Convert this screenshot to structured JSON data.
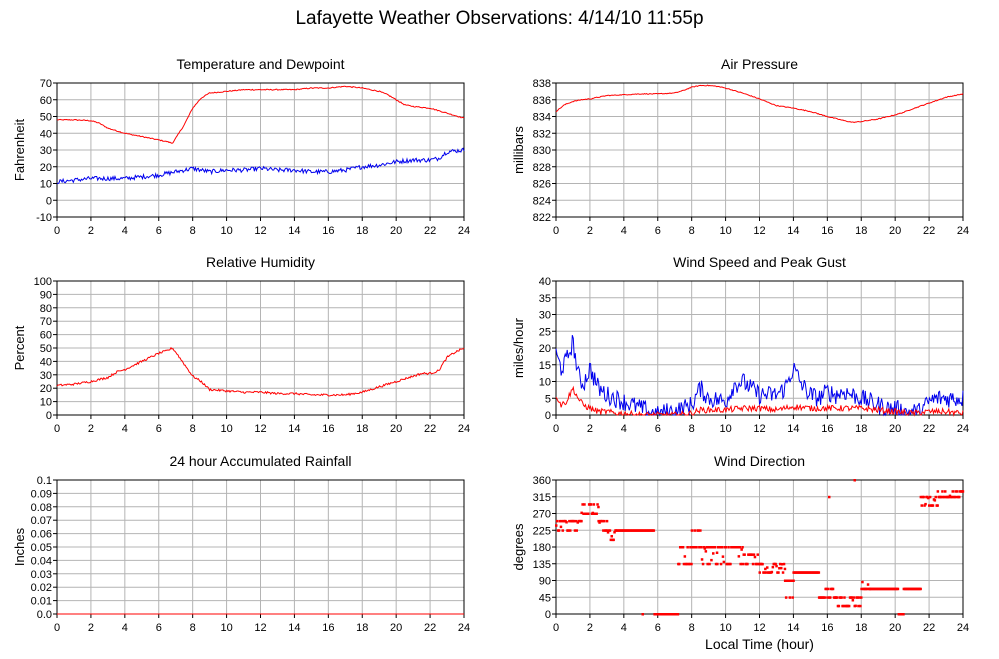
{
  "page": {
    "title": "Lafayette Weather Observations: 4/14/10 11:55p",
    "shared_xlabel": "Local Time (hour)"
  },
  "colors": {
    "red": "#ff0000",
    "blue": "#0000ee",
    "grid": "#b4b4b4",
    "axis": "#000000"
  },
  "chart_data": [
    {
      "id": "temp",
      "type": "line",
      "title": "Temperature and Dewpoint",
      "ylabel": "Fahrenheit",
      "xlabel": "",
      "xlim": [
        0,
        24
      ],
      "ylim": [
        -10,
        70
      ],
      "xticks": [
        0,
        2,
        4,
        6,
        8,
        10,
        12,
        14,
        16,
        18,
        20,
        22,
        24
      ],
      "yticks": [
        -10,
        0,
        10,
        20,
        30,
        40,
        50,
        60,
        70
      ],
      "grid": true,
      "series": [
        {
          "color": "red",
          "noise": 0.3,
          "x": [
            0,
            1,
            2,
            2.5,
            3,
            4,
            5,
            6,
            6.5,
            6.8,
            7,
            7.5,
            8,
            8.5,
            9,
            10,
            11,
            12,
            13,
            14,
            15,
            16,
            17,
            18,
            19,
            19.5,
            20,
            20.5,
            21,
            22,
            23,
            24
          ],
          "y": [
            48,
            48,
            47.5,
            46,
            43,
            40,
            38,
            36,
            35,
            34,
            37,
            45,
            55,
            61,
            64,
            65,
            66,
            66,
            66,
            66,
            67,
            67,
            68,
            67,
            65,
            63,
            60,
            57,
            56,
            55,
            52,
            49
          ]
        },
        {
          "color": "blue",
          "noise": 1.3,
          "x": [
            0,
            1,
            2,
            3,
            4,
            5,
            6,
            7,
            7.5,
            8,
            8.5,
            9,
            10,
            11,
            12,
            13,
            14,
            15,
            16,
            17,
            18,
            19,
            20,
            21,
            22,
            22.5,
            23,
            24
          ],
          "y": [
            11,
            12,
            13,
            13,
            13,
            14,
            15,
            17,
            18,
            19,
            18,
            17,
            18,
            18,
            19,
            18,
            18,
            17,
            17,
            18,
            20,
            21,
            23,
            24,
            24,
            25,
            29,
            30
          ]
        }
      ]
    },
    {
      "id": "pressure",
      "type": "line",
      "title": "Air Pressure",
      "ylabel": "millibars",
      "xlabel": "",
      "xlim": [
        0,
        24
      ],
      "ylim": [
        822,
        838
      ],
      "xticks": [
        0,
        2,
        4,
        6,
        8,
        10,
        12,
        14,
        16,
        18,
        20,
        22,
        24
      ],
      "yticks": [
        822,
        824,
        826,
        828,
        830,
        832,
        834,
        836,
        838
      ],
      "grid": true,
      "series": [
        {
          "color": "red",
          "noise": 0.05,
          "x": [
            0,
            0.5,
            1,
            1.5,
            2,
            2.5,
            3,
            4,
            5,
            6,
            7,
            7.5,
            8,
            8.5,
            9,
            9.5,
            10,
            11,
            12,
            13,
            14,
            14.5,
            15,
            16,
            17,
            17.5,
            18,
            19,
            20,
            20.5,
            21,
            22,
            23,
            24
          ],
          "y": [
            834.6,
            835.4,
            835.8,
            836,
            836.1,
            836.3,
            836.5,
            836.6,
            836.7,
            836.7,
            836.8,
            837.1,
            837.5,
            837.7,
            837.7,
            837.6,
            837.4,
            836.8,
            836.1,
            835.3,
            835,
            834.8,
            834.6,
            834,
            833.5,
            833.3,
            833.4,
            833.7,
            834.2,
            834.5,
            834.9,
            835.6,
            836.3,
            836.7
          ]
        }
      ]
    },
    {
      "id": "humidity",
      "type": "line",
      "title": "Relative Humidity",
      "ylabel": "Percent",
      "xlabel": "",
      "xlim": [
        0,
        24
      ],
      "ylim": [
        0,
        100
      ],
      "xticks": [
        0,
        2,
        4,
        6,
        8,
        10,
        12,
        14,
        16,
        18,
        20,
        22,
        24
      ],
      "yticks": [
        0,
        10,
        20,
        30,
        40,
        50,
        60,
        70,
        80,
        90,
        100
      ],
      "grid": true,
      "series": [
        {
          "color": "red",
          "noise": 0.8,
          "x": [
            0,
            1,
            2,
            3,
            3.5,
            4,
            5,
            6,
            6.5,
            6.8,
            7,
            7.5,
            8,
            8.5,
            9,
            10,
            11,
            12,
            13,
            14,
            15,
            16,
            17,
            18,
            19,
            20,
            21,
            21.5,
            22,
            22.5,
            23,
            23.5,
            24
          ],
          "y": [
            22,
            23,
            25,
            28,
            32,
            34,
            40,
            46,
            48,
            50,
            47,
            38,
            29,
            25,
            19,
            18,
            17,
            17,
            16,
            16,
            15,
            15,
            15,
            17,
            21,
            25,
            29,
            31,
            31,
            33,
            43,
            47,
            50
          ]
        }
      ]
    },
    {
      "id": "wind",
      "type": "line",
      "title": "Wind Speed and Peak Gust",
      "ylabel": "miles/hour",
      "xlabel": "",
      "xlim": [
        0,
        24
      ],
      "ylim": [
        0,
        40
      ],
      "xticks": [
        0,
        2,
        4,
        6,
        8,
        10,
        12,
        14,
        16,
        18,
        20,
        22,
        24
      ],
      "yticks": [
        0,
        5,
        10,
        15,
        20,
        25,
        30,
        35,
        40
      ],
      "grid": true,
      "series": [
        {
          "color": "blue",
          "noise": 2.8,
          "x": [
            0,
            0.3,
            0.6,
            1,
            1.3,
            1.6,
            2,
            2.5,
            3,
            3.5,
            4,
            4.5,
            5,
            5.5,
            6,
            6.5,
            7,
            7.5,
            8,
            8.5,
            9,
            10,
            10.5,
            11,
            11.5,
            12,
            13,
            13.5,
            14,
            14.5,
            15,
            15.5,
            16,
            16.5,
            17,
            17.5,
            18,
            18.5,
            19,
            19.5,
            20,
            20.5,
            21,
            21.5,
            22,
            22.5,
            23,
            23.5,
            24
          ],
          "y": [
            18,
            14,
            16,
            22,
            12,
            9,
            14,
            8,
            6,
            5,
            4,
            3,
            2,
            1,
            0,
            1,
            1,
            2,
            3,
            8,
            5,
            4,
            9,
            10,
            8,
            6,
            6,
            8,
            14,
            9,
            6,
            5,
            7,
            6,
            7,
            6,
            5,
            4,
            3,
            2,
            2,
            1,
            1,
            1,
            4,
            5,
            5,
            5,
            5
          ]
        },
        {
          "color": "red",
          "noise": 0.9,
          "x": [
            0,
            0.3,
            0.6,
            1,
            1.3,
            1.6,
            2,
            2.5,
            3,
            3.5,
            4,
            5,
            6,
            7,
            8,
            8.5,
            9,
            10,
            11,
            12,
            13,
            14,
            15,
            16,
            17,
            18,
            19,
            20,
            21,
            22,
            23,
            24
          ],
          "y": [
            6,
            3,
            4,
            8,
            5,
            3,
            2,
            1,
            1,
            0.5,
            0.5,
            0,
            0,
            0,
            0.5,
            1.5,
            1.5,
            1.5,
            2,
            2,
            1.5,
            2.5,
            2,
            2,
            2,
            2,
            1.5,
            1,
            0.5,
            1,
            1,
            0.5
          ]
        }
      ]
    },
    {
      "id": "rain",
      "type": "line",
      "title": "24 hour Accumulated Rainfall",
      "ylabel": "Inches",
      "xlabel": "",
      "xlim": [
        0,
        24
      ],
      "ylim": [
        0,
        0.1
      ],
      "xticks": [
        0,
        2,
        4,
        6,
        8,
        10,
        12,
        14,
        16,
        18,
        20,
        22,
        24
      ],
      "yticks": [
        "0.0",
        "0.01",
        "0.02",
        "0.03",
        "0.04",
        "0.05",
        "0.06",
        "0.07",
        "0.08",
        "0.09",
        "0.1"
      ],
      "grid": true,
      "series": [
        {
          "color": "red",
          "noise": 0,
          "x": [
            0,
            24
          ],
          "y": [
            0,
            0
          ]
        }
      ]
    },
    {
      "id": "winddir",
      "type": "scatter",
      "title": "Wind Direction",
      "ylabel": "degrees",
      "xlabel": "Local Time (hour)",
      "xlim": [
        0,
        24
      ],
      "ylim": [
        0,
        360
      ],
      "xticks": [
        0,
        2,
        4,
        6,
        8,
        10,
        12,
        14,
        16,
        18,
        20,
        22,
        24
      ],
      "yticks": [
        0,
        45,
        90,
        135,
        180,
        225,
        270,
        315,
        360
      ],
      "grid": true,
      "series": [
        {
          "color": "red",
          "segments": [
            [
              0,
              1.5,
              225,
              250
            ],
            [
              1.5,
              2.5,
              270,
              295
            ],
            [
              2.5,
              3,
              225,
              250
            ],
            [
              3,
              3.5,
              200,
              225
            ],
            [
              3.5,
              5.8,
              225,
              225
            ],
            [
              5.8,
              7.2,
              0,
              0
            ],
            [
              7.2,
              8,
              135,
              180
            ],
            [
              8,
              8.6,
              180,
              225
            ],
            [
              8.6,
              9.5,
              135,
              180
            ],
            [
              9.5,
              11,
              135,
              180
            ],
            [
              11,
              12,
              135,
              160
            ],
            [
              12,
              13.5,
              112,
              135
            ],
            [
              13.5,
              14,
              45,
              90
            ],
            [
              14,
              15.5,
              112,
              112
            ],
            [
              15.5,
              16.5,
              45,
              68
            ],
            [
              16.5,
              18,
              22,
              45
            ],
            [
              18,
              18.5,
              68,
              90
            ],
            [
              18.5,
              20.2,
              68,
              68
            ],
            [
              20.2,
              20.5,
              0,
              0
            ],
            [
              20.5,
              21.5,
              68,
              68
            ],
            [
              21.5,
              22.5,
              292,
              315
            ],
            [
              22.5,
              24,
              315,
              330
            ]
          ],
          "outliers": [
            [
              16.1,
              315
            ],
            [
              17.6,
              360
            ],
            [
              5.1,
              0
            ],
            [
              2.2,
              270
            ]
          ]
        }
      ]
    }
  ]
}
